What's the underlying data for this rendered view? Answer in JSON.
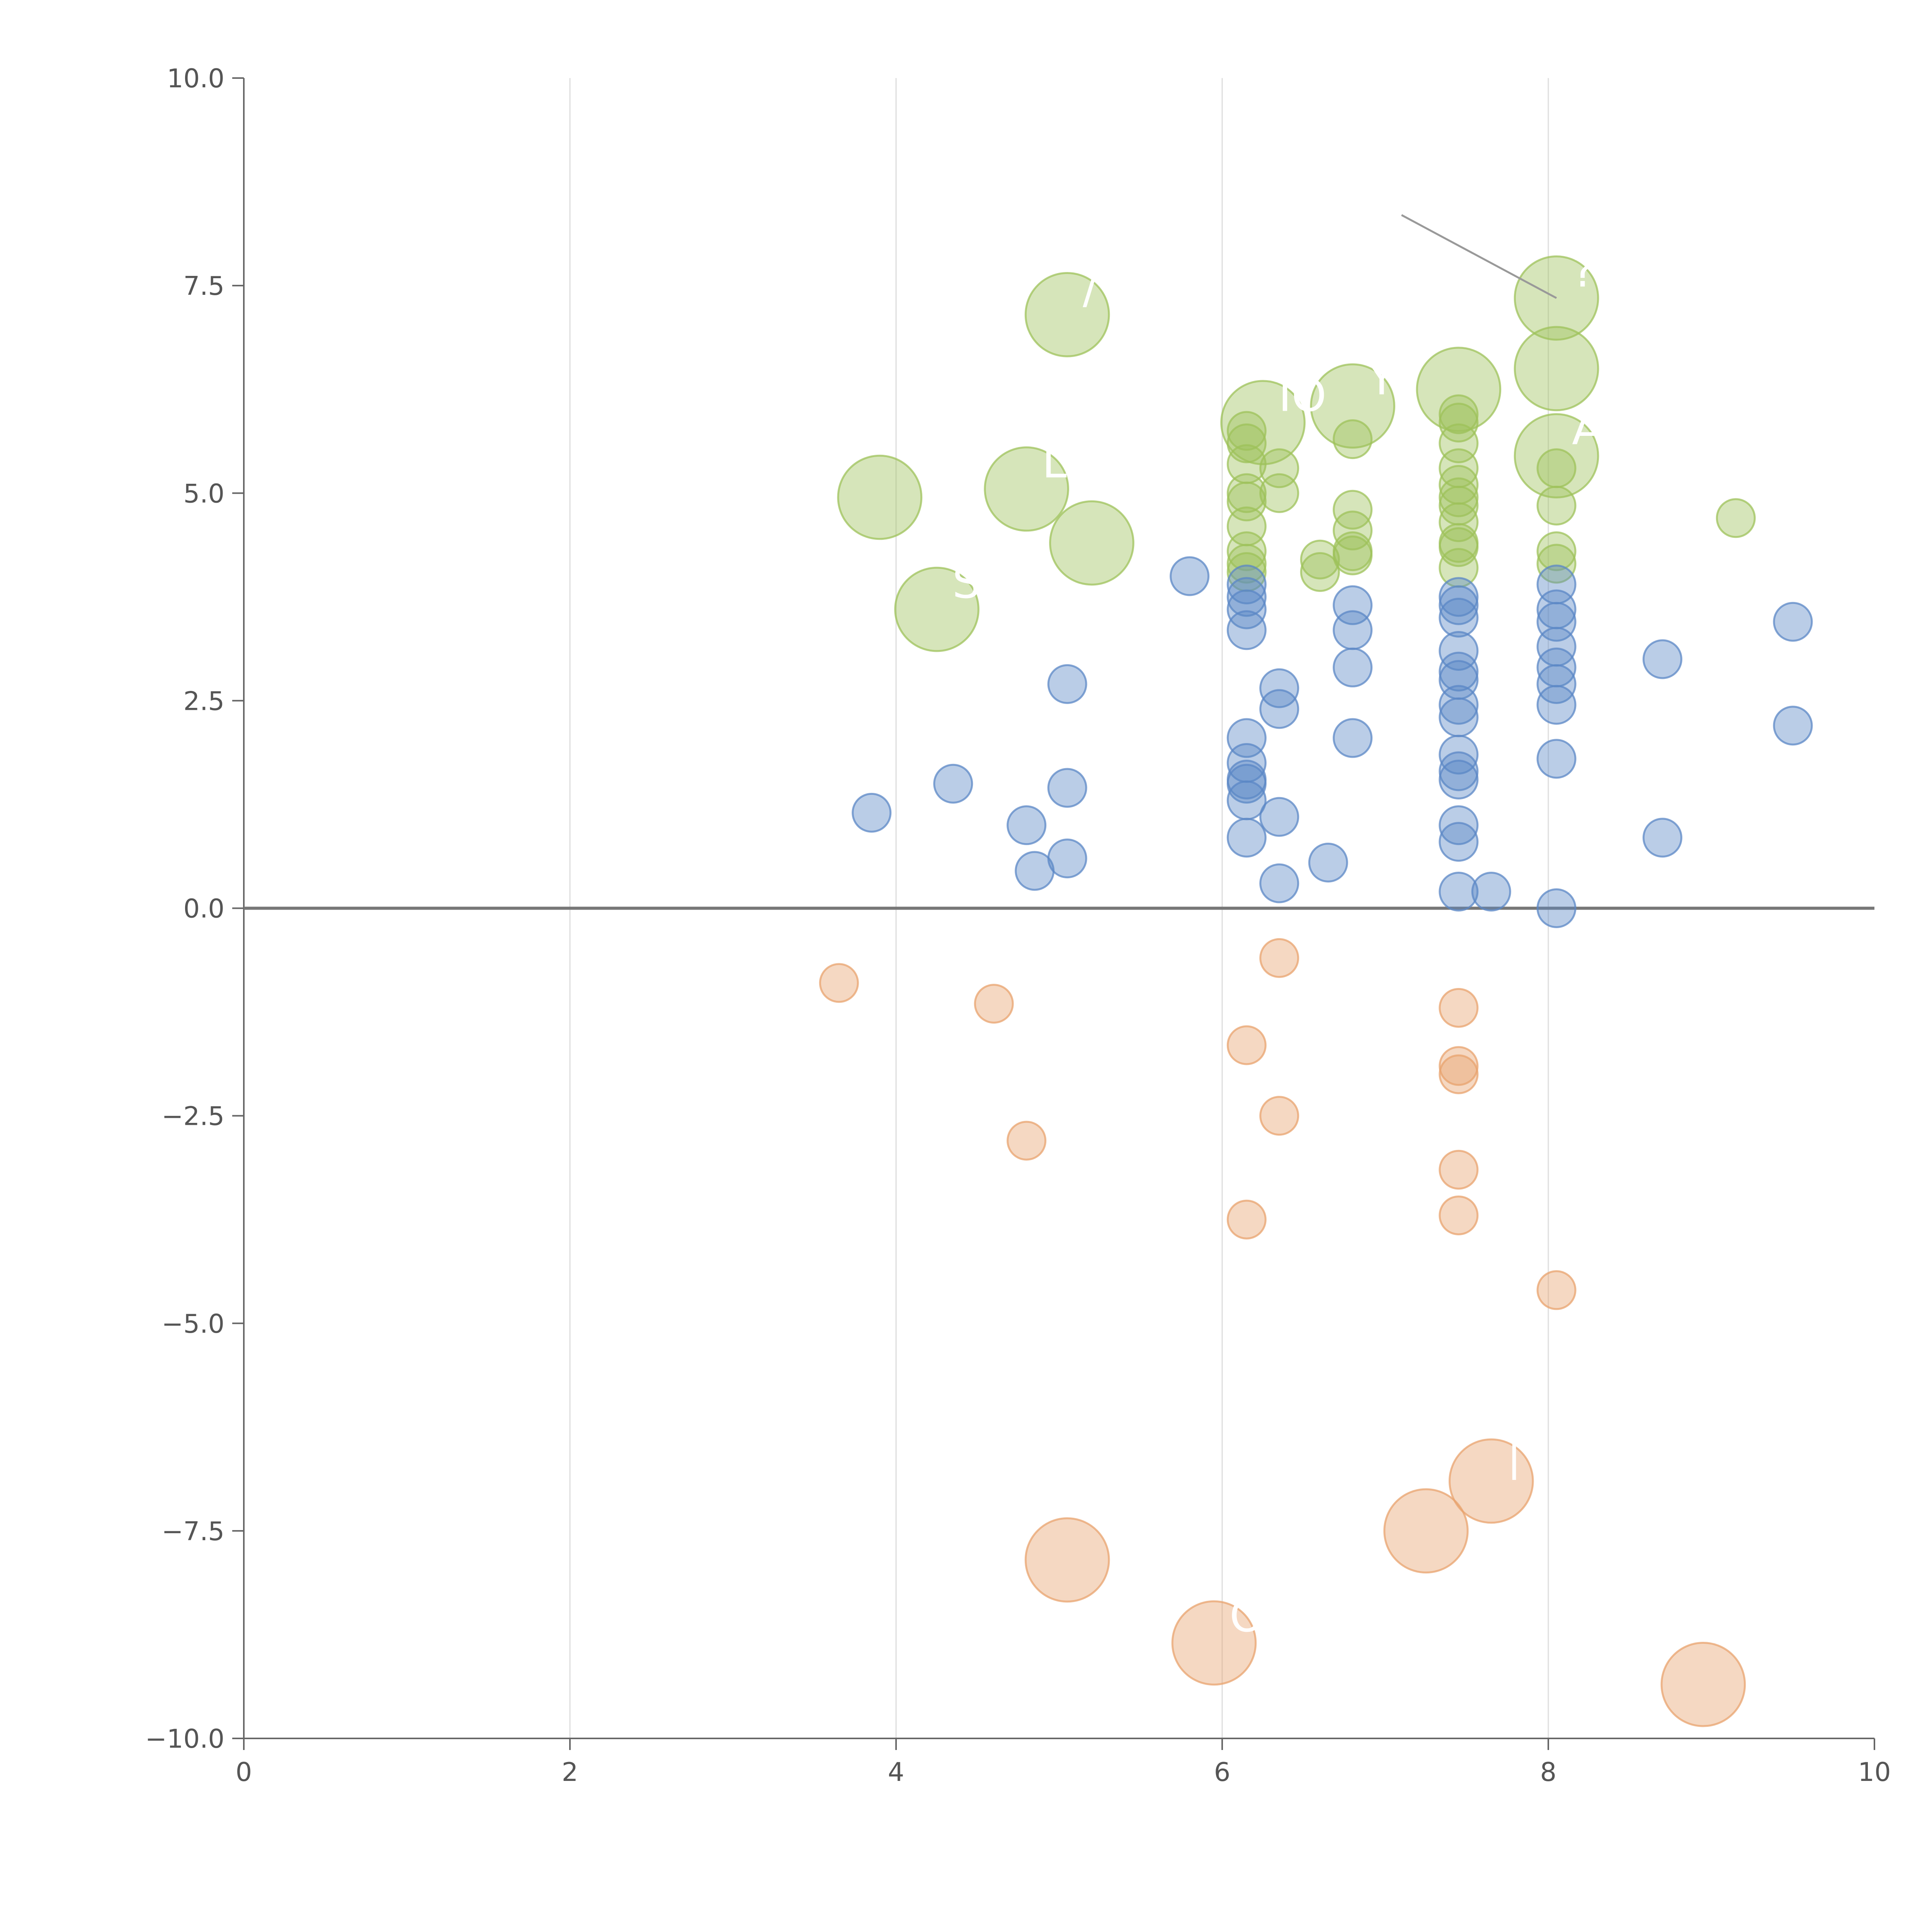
{
  "chart_data": {
    "type": "scatter",
    "subtype": "bubble",
    "title": "",
    "xlabel": "",
    "ylabel": "",
    "xlim": [
      0,
      10
    ],
    "ylim": [
      -10,
      10
    ],
    "x_ticks": [
      0,
      2,
      4,
      6,
      8,
      10
    ],
    "x_tick_labels": [
      "0",
      "2",
      "4",
      "6",
      "8",
      "10"
    ],
    "y_ticks": [
      10,
      7.5,
      5,
      2.5,
      0,
      -2.5,
      -5,
      -7.5,
      -10
    ],
    "y_tick_labels": [
      "10.0",
      "7.5",
      "5.0",
      "2.5",
      "0.0",
      "−2.5",
      "−5.0",
      "−7.5",
      "−10.0"
    ],
    "vertical_gridlines": [
      2,
      4,
      6,
      8
    ],
    "zero_line": 0,
    "annotation_leader": {
      "from": [
        7.1,
        8.35
      ],
      "to": [
        8.05,
        7.35
      ]
    },
    "series": [
      {
        "name": "green",
        "color": "#9dc15a",
        "points": [
          {
            "x": 5.05,
            "y": 7.15,
            "s": 2.2,
            "label": "/"
          },
          {
            "x": 3.9,
            "y": 4.95,
            "s": 2.2
          },
          {
            "x": 4.8,
            "y": 5.05,
            "s": 2.2,
            "label": "L"
          },
          {
            "x": 5.2,
            "y": 4.4,
            "s": 2.2
          },
          {
            "x": 4.25,
            "y": 3.6,
            "s": 2.2,
            "label": "S"
          },
          {
            "x": 6.25,
            "y": 5.85,
            "s": 2.2,
            "label": "IO"
          },
          {
            "x": 6.8,
            "y": 6.05,
            "s": 2.2,
            "label": "Y"
          },
          {
            "x": 7.45,
            "y": 6.25,
            "s": 2.2
          },
          {
            "x": 8.05,
            "y": 7.35,
            "s": 2.2,
            "label": "?"
          },
          {
            "x": 8.05,
            "y": 6.5,
            "s": 2.2
          },
          {
            "x": 8.05,
            "y": 5.45,
            "s": 2.2,
            "label": "A"
          },
          {
            "x": 6.15,
            "y": 5.75,
            "s": 1
          },
          {
            "x": 6.15,
            "y": 5.6,
            "s": 1
          },
          {
            "x": 6.15,
            "y": 5.35,
            "s": 1
          },
          {
            "x": 6.15,
            "y": 5.0,
            "s": 1
          },
          {
            "x": 6.15,
            "y": 4.9,
            "s": 1
          },
          {
            "x": 6.15,
            "y": 4.6,
            "s": 1
          },
          {
            "x": 6.15,
            "y": 4.3,
            "s": 1
          },
          {
            "x": 6.15,
            "y": 4.15,
            "s": 1
          },
          {
            "x": 6.15,
            "y": 4.05,
            "s": 1
          },
          {
            "x": 6.35,
            "y": 5.3,
            "s": 1
          },
          {
            "x": 6.35,
            "y": 5.0,
            "s": 1
          },
          {
            "x": 6.6,
            "y": 4.2,
            "s": 1
          },
          {
            "x": 6.6,
            "y": 4.05,
            "s": 1
          },
          {
            "x": 6.8,
            "y": 5.65,
            "s": 1
          },
          {
            "x": 6.8,
            "y": 4.8,
            "s": 1
          },
          {
            "x": 6.8,
            "y": 4.55,
            "s": 1
          },
          {
            "x": 6.8,
            "y": 4.3,
            "s": 1
          },
          {
            "x": 6.8,
            "y": 4.25,
            "s": 1
          },
          {
            "x": 7.45,
            "y": 5.95,
            "s": 1
          },
          {
            "x": 7.45,
            "y": 5.85,
            "s": 1
          },
          {
            "x": 7.45,
            "y": 5.6,
            "s": 1
          },
          {
            "x": 7.45,
            "y": 5.3,
            "s": 1
          },
          {
            "x": 7.45,
            "y": 5.1,
            "s": 1
          },
          {
            "x": 7.45,
            "y": 4.95,
            "s": 1
          },
          {
            "x": 7.45,
            "y": 4.85,
            "s": 1
          },
          {
            "x": 7.45,
            "y": 4.65,
            "s": 1
          },
          {
            "x": 7.45,
            "y": 4.4,
            "s": 1
          },
          {
            "x": 7.45,
            "y": 4.35,
            "s": 1
          },
          {
            "x": 7.45,
            "y": 4.1,
            "s": 1
          },
          {
            "x": 8.05,
            "y": 5.3,
            "s": 1
          },
          {
            "x": 8.05,
            "y": 4.85,
            "s": 1
          },
          {
            "x": 8.05,
            "y": 4.3,
            "s": 1
          },
          {
            "x": 8.05,
            "y": 4.15,
            "s": 1
          },
          {
            "x": 9.15,
            "y": 4.7,
            "s": 1
          }
        ]
      },
      {
        "name": "blue",
        "color": "#5b87c5",
        "points": [
          {
            "x": 3.85,
            "y": 1.15,
            "s": 1
          },
          {
            "x": 4.35,
            "y": 1.5,
            "s": 1
          },
          {
            "x": 4.8,
            "y": 1.0,
            "s": 1
          },
          {
            "x": 4.85,
            "y": 0.45,
            "s": 1
          },
          {
            "x": 5.05,
            "y": 2.7,
            "s": 1
          },
          {
            "x": 5.05,
            "y": 1.45,
            "s": 1
          },
          {
            "x": 5.05,
            "y": 0.6,
            "s": 1
          },
          {
            "x": 5.8,
            "y": 4.0,
            "s": 1
          },
          {
            "x": 6.15,
            "y": 3.9,
            "s": 1
          },
          {
            "x": 6.15,
            "y": 3.75,
            "s": 1
          },
          {
            "x": 6.15,
            "y": 3.6,
            "s": 1
          },
          {
            "x": 6.15,
            "y": 3.35,
            "s": 1
          },
          {
            "x": 6.15,
            "y": 2.05,
            "s": 1
          },
          {
            "x": 6.15,
            "y": 1.75,
            "s": 1
          },
          {
            "x": 6.15,
            "y": 1.55,
            "s": 1
          },
          {
            "x": 6.15,
            "y": 1.5,
            "s": 1
          },
          {
            "x": 6.15,
            "y": 1.3,
            "s": 1
          },
          {
            "x": 6.15,
            "y": 0.85,
            "s": 1
          },
          {
            "x": 6.35,
            "y": 2.65,
            "s": 1
          },
          {
            "x": 6.35,
            "y": 2.4,
            "s": 1
          },
          {
            "x": 6.35,
            "y": 1.1,
            "s": 1
          },
          {
            "x": 6.35,
            "y": 0.3,
            "s": 1
          },
          {
            "x": 6.65,
            "y": 0.55,
            "s": 1
          },
          {
            "x": 6.8,
            "y": 3.65,
            "s": 1
          },
          {
            "x": 6.8,
            "y": 3.35,
            "s": 1
          },
          {
            "x": 6.8,
            "y": 2.9,
            "s": 1
          },
          {
            "x": 6.8,
            "y": 2.05,
            "s": 1
          },
          {
            "x": 7.45,
            "y": 3.75,
            "s": 1
          },
          {
            "x": 7.45,
            "y": 3.65,
            "s": 1
          },
          {
            "x": 7.45,
            "y": 3.5,
            "s": 1
          },
          {
            "x": 7.45,
            "y": 3.1,
            "s": 1
          },
          {
            "x": 7.45,
            "y": 2.85,
            "s": 1
          },
          {
            "x": 7.45,
            "y": 2.75,
            "s": 1
          },
          {
            "x": 7.45,
            "y": 2.45,
            "s": 1
          },
          {
            "x": 7.45,
            "y": 2.3,
            "s": 1
          },
          {
            "x": 7.45,
            "y": 1.85,
            "s": 1
          },
          {
            "x": 7.45,
            "y": 1.65,
            "s": 1
          },
          {
            "x": 7.45,
            "y": 1.55,
            "s": 1
          },
          {
            "x": 7.45,
            "y": 1.0,
            "s": 1
          },
          {
            "x": 7.45,
            "y": 0.8,
            "s": 1
          },
          {
            "x": 7.45,
            "y": 0.2,
            "s": 1
          },
          {
            "x": 7.65,
            "y": 0.2,
            "s": 1
          },
          {
            "x": 8.05,
            "y": 3.9,
            "s": 1
          },
          {
            "x": 8.05,
            "y": 3.6,
            "s": 1
          },
          {
            "x": 8.05,
            "y": 3.45,
            "s": 1
          },
          {
            "x": 8.05,
            "y": 3.15,
            "s": 1
          },
          {
            "x": 8.05,
            "y": 2.9,
            "s": 1
          },
          {
            "x": 8.05,
            "y": 2.7,
            "s": 1
          },
          {
            "x": 8.05,
            "y": 2.45,
            "s": 1
          },
          {
            "x": 8.05,
            "y": 1.8,
            "s": 1
          },
          {
            "x": 8.05,
            "y": 0.0,
            "s": 1
          },
          {
            "x": 8.7,
            "y": 3.0,
            "s": 1
          },
          {
            "x": 8.7,
            "y": 0.85,
            "s": 1
          },
          {
            "x": 9.5,
            "y": 3.45,
            "s": 1
          },
          {
            "x": 9.5,
            "y": 2.2,
            "s": 1
          }
        ]
      },
      {
        "name": "orange",
        "color": "#e8a36e",
        "points": [
          {
            "x": 3.65,
            "y": -0.9,
            "s": 1
          },
          {
            "x": 4.6,
            "y": -1.15,
            "s": 1
          },
          {
            "x": 4.8,
            "y": -2.8,
            "s": 1
          },
          {
            "x": 6.15,
            "y": -1.65,
            "s": 1
          },
          {
            "x": 6.15,
            "y": -3.75,
            "s": 1
          },
          {
            "x": 6.35,
            "y": -0.6,
            "s": 1
          },
          {
            "x": 6.35,
            "y": -2.5,
            "s": 1
          },
          {
            "x": 7.45,
            "y": -1.2,
            "s": 1
          },
          {
            "x": 7.45,
            "y": -1.9,
            "s": 1
          },
          {
            "x": 7.45,
            "y": -2.0,
            "s": 1
          },
          {
            "x": 7.45,
            "y": -3.15,
            "s": 1
          },
          {
            "x": 7.45,
            "y": -3.7,
            "s": 1
          },
          {
            "x": 8.05,
            "y": -4.6,
            "s": 1
          },
          {
            "x": 5.05,
            "y": -7.85,
            "s": 2.2
          },
          {
            "x": 5.95,
            "y": -8.85,
            "s": 2.2,
            "label": "O"
          },
          {
            "x": 7.25,
            "y": -7.5,
            "s": 2.2
          },
          {
            "x": 7.65,
            "y": -6.9,
            "s": 2.2,
            "label": "|"
          },
          {
            "x": 8.95,
            "y": -9.35,
            "s": 2.2
          }
        ]
      }
    ]
  }
}
